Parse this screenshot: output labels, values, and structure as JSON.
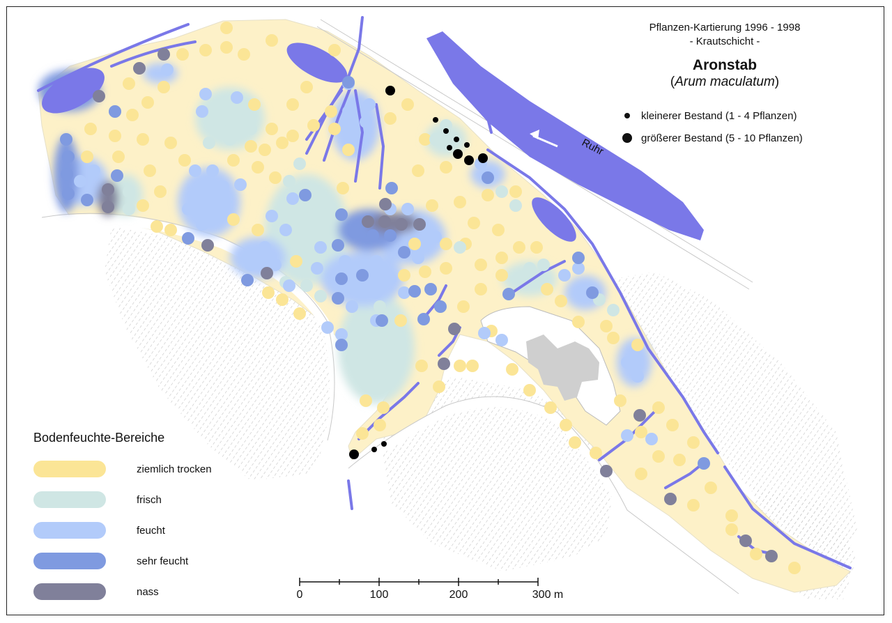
{
  "title": {
    "line1": "Pflanzen-Kartierung 1996 - 1998",
    "line2": "- Krautschicht -",
    "species": "Aronstab",
    "latin_open": "(",
    "latin": "Arum maculatum",
    "latin_close": ")"
  },
  "markers": {
    "small": "kleinerer Bestand (1 - 4 Pflanzen)",
    "large": "größerer Bestand (5 - 10 Pflanzen)"
  },
  "river_label": "Ruhr",
  "legend": {
    "title": "Bodenfeuchte-Bereiche",
    "items": [
      {
        "label": "ziemlich trocken",
        "color": "#fbe596"
      },
      {
        "label": "frisch",
        "color": "#cfe6e4"
      },
      {
        "label": "feucht",
        "color": "#b2cbfa"
      },
      {
        "label": "sehr feucht",
        "color": "#7f9ae0"
      },
      {
        "label": "nass",
        "color": "#80809a"
      }
    ]
  },
  "scale": {
    "ticks": [
      "0",
      "100",
      "200",
      "300 m"
    ]
  },
  "colors": {
    "water": "#7a78e8",
    "area": "#fdf1c8",
    "built": "#cfcfcf",
    "hatch": "#d8d8d8"
  }
}
